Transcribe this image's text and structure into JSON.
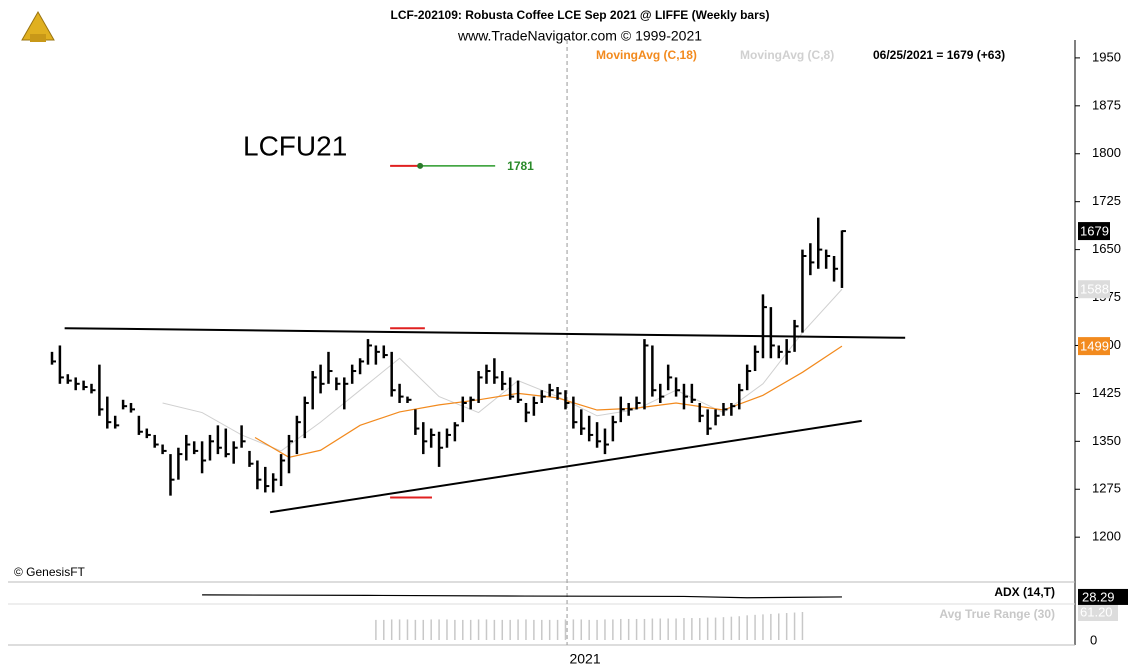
{
  "chart_data": {
    "type": "ohlc",
    "title": "LCF-202109:  Robusta Coffee LCE Sep 2021 @ LIFFE  (Weekly bars)",
    "subtitle": "www.TradeNavigator.com © 1999-2021",
    "symbol_label": "LCFU21",
    "source": "© GenesisFT",
    "date_readout": "06/25/2021 = 1679 (+63)",
    "xlim": [
      -5.57,
      129.5
    ],
    "ylim": [
      1133,
      1978
    ],
    "yticks": [
      1950,
      1875,
      1800,
      1725,
      1650,
      1575,
      1500,
      1425,
      1350,
      1275,
      1200
    ],
    "bars": {
      "high": [
        1490,
        1500,
        1455,
        1450,
        1445,
        1440,
        1470,
        1420,
        1390,
        1415,
        1410,
        1390,
        1370,
        1360,
        1345,
        1330,
        1340,
        1360,
        1350,
        1350,
        1360,
        1375,
        1370,
        1350,
        1375,
        1335,
        1320,
        1310,
        1300,
        1330,
        1360,
        1390,
        1420,
        1460,
        1470,
        1490,
        1450,
        1450,
        1470,
        1480,
        1510,
        1500,
        1500,
        1490,
        1440,
        1420,
        1400,
        1380,
        1370,
        1365,
        1370,
        1380,
        1420,
        1420,
        1460,
        1470,
        1480,
        1460,
        1450,
        1445,
        1410,
        1420,
        1430,
        1440,
        1435,
        1430,
        1420,
        1400,
        1390,
        1380,
        1370,
        1390,
        1420,
        1410,
        1420,
        1510,
        1500,
        1440,
        1470,
        1450,
        1440,
        1440,
        1410,
        1400,
        1400,
        1410,
        1410,
        1440,
        1470,
        1500,
        1580,
        1560,
        1500,
        1510,
        1540,
        1650,
        1660,
        1700,
        1650,
        1640,
        1680
      ],
      "low": [
        1470,
        1440,
        1440,
        1430,
        1430,
        1425,
        1390,
        1370,
        1370,
        1400,
        1395,
        1360,
        1355,
        1340,
        1330,
        1265,
        1290,
        1320,
        1330,
        1300,
        1320,
        1330,
        1325,
        1315,
        1340,
        1310,
        1275,
        1270,
        1270,
        1280,
        1300,
        1330,
        1355,
        1400,
        1425,
        1440,
        1430,
        1400,
        1440,
        1455,
        1470,
        1470,
        1480,
        1420,
        1410,
        1410,
        1360,
        1330,
        1340,
        1310,
        1340,
        1350,
        1380,
        1400,
        1410,
        1440,
        1440,
        1430,
        1415,
        1410,
        1380,
        1390,
        1410,
        1420,
        1415,
        1400,
        1370,
        1360,
        1350,
        1340,
        1330,
        1350,
        1380,
        1390,
        1400,
        1400,
        1420,
        1410,
        1430,
        1420,
        1400,
        1410,
        1380,
        1360,
        1375,
        1390,
        1390,
        1400,
        1430,
        1460,
        1480,
        1480,
        1480,
        1470,
        1490,
        1520,
        1610,
        1620,
        1620,
        1600,
        1590
      ],
      "close": [
        1475,
        1450,
        1445,
        1440,
        1435,
        1430,
        1400,
        1380,
        1375,
        1405,
        1400,
        1365,
        1360,
        1345,
        1335,
        1290,
        1330,
        1345,
        1335,
        1320,
        1350,
        1340,
        1330,
        1340,
        1350,
        1315,
        1290,
        1280,
        1290,
        1320,
        1350,
        1380,
        1410,
        1450,
        1440,
        1460,
        1440,
        1440,
        1460,
        1475,
        1500,
        1490,
        1485,
        1430,
        1420,
        1415,
        1370,
        1350,
        1360,
        1340,
        1360,
        1375,
        1410,
        1415,
        1450,
        1460,
        1450,
        1440,
        1420,
        1415,
        1395,
        1410,
        1420,
        1430,
        1425,
        1410,
        1380,
        1370,
        1360,
        1350,
        1345,
        1380,
        1400,
        1400,
        1410,
        1500,
        1430,
        1420,
        1450,
        1430,
        1420,
        1415,
        1390,
        1370,
        1390,
        1400,
        1405,
        1430,
        1460,
        1490,
        1560,
        1500,
        1490,
        1490,
        1530,
        1640,
        1630,
        1650,
        1640,
        1620,
        1679
      ]
    },
    "series": [
      {
        "name": "MovingAvg (C,18)",
        "color": "#f28a1e",
        "x": [
          25.7,
          30,
          34,
          39,
          44,
          49,
          54,
          59,
          64,
          69,
          74,
          79,
          85,
          90,
          95,
          100
        ],
        "values": [
          1356,
          1325,
          1336,
          1375,
          1396,
          1407,
          1415,
          1425,
          1418,
          1399,
          1402,
          1410,
          1399,
          1422,
          1458,
          1499
        ]
      },
      {
        "name": "MovingAvg (C,8)",
        "color": "#d0d0d0",
        "x": [
          14,
          19,
          24,
          29,
          34,
          39,
          44,
          49,
          54,
          59,
          64,
          69,
          74,
          79,
          85,
          90,
          95,
          100
        ],
        "values": [
          1410,
          1395,
          1360,
          1335,
          1380,
          1430,
          1480,
          1420,
          1395,
          1445,
          1420,
          1390,
          1400,
          1430,
          1395,
          1440,
          1520,
          1588
        ]
      }
    ],
    "trendlines": [
      {
        "x": [
          1.6,
          108
        ],
        "values": [
          1527,
          1512
        ]
      },
      {
        "x": [
          27.6,
          102.5
        ],
        "values": [
          1239,
          1382
        ]
      }
    ],
    "marker": {
      "label": "1781",
      "value": 1781,
      "x": [
        42.8,
        46.6,
        56.1
      ]
    },
    "red_marks": [
      {
        "x": [
          42.8,
          47.2
        ],
        "value": 1527
      },
      {
        "x": [
          42.8,
          48.1
        ],
        "value": 1262
      }
    ],
    "year_marker": {
      "x": 65.2,
      "label": "2021"
    },
    "adx": {
      "name": "ADX (14,T)",
      "x": [
        19,
        40,
        60,
        80,
        88,
        95,
        100
      ],
      "values": [
        29.5,
        29.2,
        28.8,
        28.6,
        27.8,
        28.1,
        28.29
      ],
      "ylim": [
        0,
        36.5
      ],
      "value_label": "28.29"
    },
    "atr": {
      "name": "Avg True Range (30)",
      "ylim": [
        -10.9,
        124.6
      ],
      "yticks": [
        0
      ],
      "value_label": "61.20",
      "values": [
        null,
        null,
        null,
        null,
        null,
        null,
        null,
        null,
        null,
        null,
        null,
        null,
        null,
        null,
        null,
        null,
        null,
        null,
        null,
        null,
        null,
        null,
        null,
        null,
        null,
        null,
        null,
        null,
        null,
        null,
        null,
        null,
        null,
        null,
        null,
        null,
        null,
        null,
        null,
        null,
        null,
        44,
        44,
        45,
        45,
        45,
        44,
        44,
        45,
        45,
        45,
        44,
        44,
        44,
        45,
        45,
        44,
        44,
        44,
        45,
        45,
        44,
        44,
        44,
        44,
        45,
        45,
        45,
        44,
        44,
        45,
        45,
        46,
        46,
        46,
        46,
        47,
        47,
        47,
        47,
        48,
        48,
        48,
        49,
        49,
        50,
        51,
        52,
        54,
        55,
        56,
        57,
        58,
        59,
        60,
        61.2
      ]
    }
  }
}
